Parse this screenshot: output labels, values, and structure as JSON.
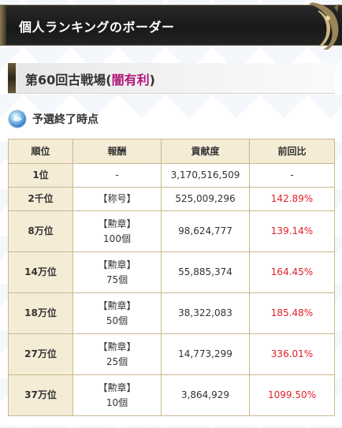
{
  "banner": {
    "title": "個人ランキングのボーダー",
    "ornament_icon": "golden-dragon-ornament-icon"
  },
  "section": {
    "title_prefix": "第60回古戦場(",
    "title_accent": "闇有利",
    "title_suffix": ")",
    "accent_color": "#b0167a"
  },
  "subheader": {
    "icon": "blue-orb-icon",
    "label": "予選終了時点"
  },
  "table": {
    "headers": [
      "順位",
      "報酬",
      "貢献度",
      "前回比"
    ],
    "rows": [
      {
        "rank": "1位",
        "reward_tag": "",
        "reward_detail": "-",
        "contribution": "3,170,516,509",
        "ratio": "-"
      },
      {
        "rank": "2千位",
        "reward_tag": "【称号】",
        "reward_detail": "",
        "contribution": "525,009,296",
        "ratio": "142.89%"
      },
      {
        "rank": "8万位",
        "reward_tag": "【勲章】",
        "reward_detail": "100個",
        "contribution": "98,624,777",
        "ratio": "139.14%"
      },
      {
        "rank": "14万位",
        "reward_tag": "【勲章】",
        "reward_detail": "75個",
        "contribution": "55,885,374",
        "ratio": "164.45%"
      },
      {
        "rank": "18万位",
        "reward_tag": "【勲章】",
        "reward_detail": "50個",
        "contribution": "38,322,083",
        "ratio": "185.48%"
      },
      {
        "rank": "27万位",
        "reward_tag": "【勲章】",
        "reward_detail": "25個",
        "contribution": "14,773,299",
        "ratio": "336.01%"
      },
      {
        "rank": "37万位",
        "reward_tag": "【勲章】",
        "reward_detail": "10個",
        "contribution": "3,864,929",
        "ratio": "1099.50%"
      }
    ],
    "ratio_color": "#e0202a"
  }
}
